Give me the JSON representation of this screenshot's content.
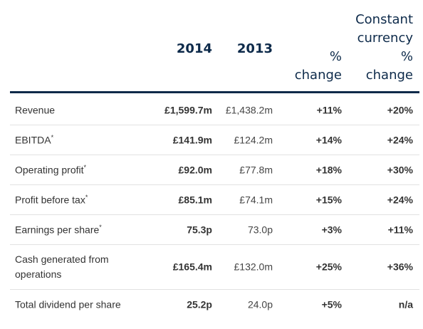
{
  "header": {
    "col_2014": "2014",
    "col_2013": "2013",
    "col_pct_line1": "%",
    "col_pct_line2": "change",
    "col_ccy_line1": "Constant",
    "col_ccy_line2": "currency",
    "col_ccy_line3": "%",
    "col_ccy_line4": "change"
  },
  "rows": [
    {
      "label": "Revenue",
      "mark": "",
      "v2014": "£1,599.7m",
      "v2013": "£1,438.2m",
      "pct": "+11%",
      "ccy": "+20%"
    },
    {
      "label": "EBITDA",
      "mark": "*",
      "v2014": "£141.9m",
      "v2013": "£124.2m",
      "pct": "+14%",
      "ccy": "+24%"
    },
    {
      "label": "Operating profit",
      "mark": "*",
      "v2014": "£92.0m",
      "v2013": "£77.8m",
      "pct": "+18%",
      "ccy": "+30%"
    },
    {
      "label": "Profit before tax",
      "mark": "*",
      "v2014": "£85.1m",
      "v2013": "£74.1m",
      "pct": "+15%",
      "ccy": "+24%"
    },
    {
      "label": "Earnings per share",
      "mark": "*",
      "v2014": "75.3p",
      "v2013": "73.0p",
      "pct": "+3%",
      "ccy": "+11%"
    },
    {
      "label_line1": "Cash generated from",
      "label_line2": "operations",
      "mark": "",
      "v2014": "£165.4m",
      "v2013": "£132.0m",
      "pct": "+25%",
      "ccy": "+36%"
    },
    {
      "label": "Total dividend per share",
      "mark": "",
      "v2014": "25.2p",
      "v2013": "24.0p",
      "pct": "+5%",
      "ccy": "n/a"
    }
  ]
}
